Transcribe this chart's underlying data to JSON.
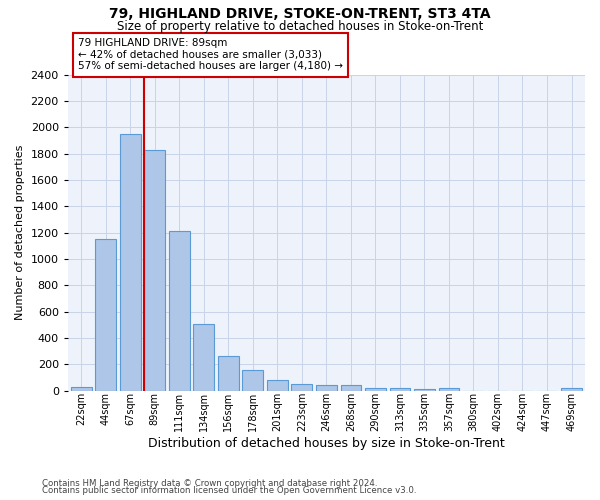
{
  "title1": "79, HIGHLAND DRIVE, STOKE-ON-TRENT, ST3 4TA",
  "title2": "Size of property relative to detached houses in Stoke-on-Trent",
  "xlabel": "Distribution of detached houses by size in Stoke-on-Trent",
  "ylabel": "Number of detached properties",
  "footer1": "Contains HM Land Registry data © Crown copyright and database right 2024.",
  "footer2": "Contains public sector information licensed under the Open Government Licence v3.0.",
  "categories": [
    "22sqm",
    "44sqm",
    "67sqm",
    "89sqm",
    "111sqm",
    "134sqm",
    "156sqm",
    "178sqm",
    "201sqm",
    "223sqm",
    "246sqm",
    "268sqm",
    "290sqm",
    "313sqm",
    "335sqm",
    "357sqm",
    "380sqm",
    "402sqm",
    "424sqm",
    "447sqm",
    "469sqm"
  ],
  "values": [
    30,
    1150,
    1950,
    1830,
    1210,
    510,
    265,
    155,
    80,
    50,
    45,
    40,
    20,
    20,
    12,
    20,
    0,
    0,
    0,
    0,
    20
  ],
  "bar_color": "#aec6e8",
  "bar_edge_color": "#5b9bd5",
  "highlight_bar_index": 3,
  "red_line_color": "#cc0000",
  "annotation_line1": "79 HIGHLAND DRIVE: 89sqm",
  "annotation_line2": "← 42% of detached houses are smaller (3,033)",
  "annotation_line3": "57% of semi-detached houses are larger (4,180) →",
  "ylim": [
    0,
    2400
  ],
  "yticks": [
    0,
    200,
    400,
    600,
    800,
    1000,
    1200,
    1400,
    1600,
    1800,
    2000,
    2200,
    2400
  ],
  "grid_color": "#c8d4e8",
  "bg_color": "#eef2fa"
}
